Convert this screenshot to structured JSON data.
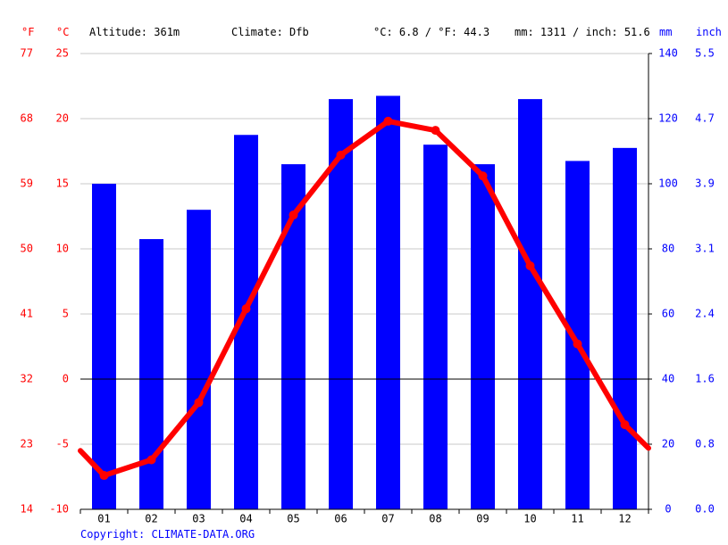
{
  "header": {
    "altitude": "Altitude: 361m",
    "climate": "Climate: Dfb",
    "temp_summary": "°C: 6.8 / °F: 44.3",
    "precip_summary": "mm: 1311 / inch: 51.6"
  },
  "units": {
    "fahrenheit": "°F",
    "celsius": "°C",
    "mm": "mm",
    "inch": "inch"
  },
  "copyright": "Copyright: CLIMATE-DATA.ORG",
  "colors": {
    "temperature": "#ff0000",
    "precipitation": "#0000ff",
    "grid": "#c8c8c8",
    "zero_line": "#000000"
  },
  "chart_data": {
    "type": "bar+line",
    "categories": [
      "01",
      "02",
      "03",
      "04",
      "05",
      "06",
      "07",
      "08",
      "09",
      "10",
      "11",
      "12"
    ],
    "series": [
      {
        "name": "mm",
        "type": "bar",
        "axis": "right",
        "values": [
          100,
          83,
          92,
          115,
          106,
          126,
          127,
          112,
          106,
          126,
          107,
          111
        ]
      },
      {
        "name": "°C",
        "type": "line",
        "axis": "left",
        "values": [
          -7.4,
          -6.2,
          -1.8,
          5.4,
          12.6,
          17.2,
          19.8,
          19.1,
          15.6,
          8.7,
          2.7,
          -3.5
        ]
      }
    ],
    "temperature_line_edges": {
      "start": -5.5,
      "end": -5.3
    },
    "left_axis_celsius": {
      "ticks": [
        -10,
        -5,
        0,
        5,
        10,
        15,
        20,
        25
      ],
      "range": [
        -10,
        25
      ]
    },
    "left_axis_fahrenheit": {
      "ticks": [
        14,
        23,
        32,
        41,
        50,
        59,
        68,
        77
      ]
    },
    "right_axis_mm": {
      "ticks": [
        0,
        20,
        40,
        60,
        80,
        100,
        120,
        140
      ],
      "range": [
        0,
        140
      ]
    },
    "right_axis_inch": {
      "ticks": [
        "0.0",
        "0.8",
        "1.6",
        "2.4",
        "3.1",
        "3.9",
        "4.7",
        "5.5"
      ]
    },
    "grid": true
  }
}
